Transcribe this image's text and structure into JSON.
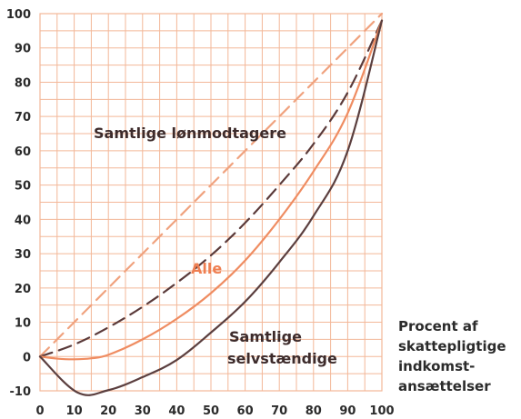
{
  "chart_data": {
    "type": "line",
    "title": "",
    "xlabel": "",
    "ylabel": "",
    "xlim": [
      0,
      100
    ],
    "ylim": [
      -10,
      100
    ],
    "grid": true,
    "x_ticks": [
      0,
      10,
      20,
      30,
      40,
      50,
      60,
      70,
      80,
      90,
      100
    ],
    "y_ticks": [
      -10,
      0,
      10,
      20,
      30,
      40,
      50,
      60,
      70,
      80,
      90,
      100
    ],
    "x_tick_labels": [
      "0",
      "10",
      "20",
      "30",
      "40",
      "50",
      "60",
      "70",
      "80",
      "90",
      "100"
    ],
    "y_tick_labels": [
      "-10",
      "0",
      "10",
      "20",
      "30",
      "40",
      "50",
      "60",
      "70",
      "80",
      "90",
      "100"
    ],
    "series": [
      {
        "key": "equality",
        "style": "dashed",
        "color": "#f0a27e",
        "points": [
          [
            0,
            0
          ],
          [
            100,
            100
          ]
        ]
      },
      {
        "key": "wage_earners",
        "name": "Samtlige lønmodtagere",
        "style": "dashed",
        "color": "#5a3a3a",
        "points": [
          [
            0,
            0
          ],
          [
            10,
            3.5
          ],
          [
            20,
            8.5
          ],
          [
            30,
            14.5
          ],
          [
            40,
            21.5
          ],
          [
            50,
            29.5
          ],
          [
            60,
            39
          ],
          [
            70,
            50
          ],
          [
            80,
            62
          ],
          [
            90,
            77
          ],
          [
            100,
            98
          ]
        ]
      },
      {
        "key": "all",
        "name": "Alle",
        "style": "solid",
        "color": "#ef8c61",
        "points": [
          [
            0,
            0
          ],
          [
            5,
            -0.6
          ],
          [
            10,
            -0.8
          ],
          [
            15,
            -0.5
          ],
          [
            20,
            0.5
          ],
          [
            30,
            5
          ],
          [
            40,
            11
          ],
          [
            50,
            18.5
          ],
          [
            60,
            28
          ],
          [
            70,
            40
          ],
          [
            80,
            54
          ],
          [
            90,
            71
          ],
          [
            100,
            98
          ]
        ]
      },
      {
        "key": "self_employed",
        "name": "Samtlige selvstændige",
        "style": "solid",
        "color": "#5b3f3f",
        "points": [
          [
            0,
            0
          ],
          [
            11,
            -10.5
          ],
          [
            20,
            -9.8
          ],
          [
            30,
            -6
          ],
          [
            40,
            -1
          ],
          [
            50,
            7
          ],
          [
            60,
            16
          ],
          [
            70,
            27.5
          ],
          [
            80,
            41
          ],
          [
            90,
            60
          ],
          [
            100,
            98
          ]
        ]
      }
    ],
    "labels": {
      "wage_earners": "Samtlige lønmodtagere",
      "all": "Alle",
      "self_employed_line1": "Samtlige",
      "self_employed_line2": "selvstændige",
      "x_axis_line1": "Procent af",
      "x_axis_line2": "skattepligtige",
      "x_axis_line3": "indkomst-",
      "x_axis_line4": "ansættelser"
    },
    "colors": {
      "grid": "#f3b798",
      "text": "#2b2b2b",
      "label_dark": "#3d2b2b",
      "label_orange": "#ef7f52"
    }
  }
}
